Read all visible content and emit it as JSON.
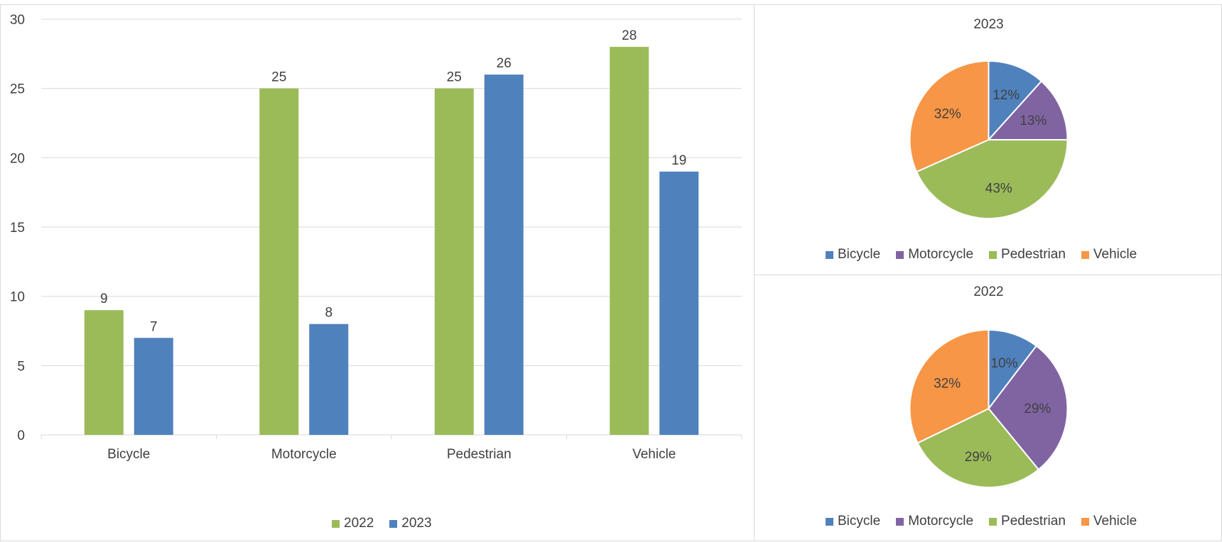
{
  "chart_data": [
    {
      "type": "bar",
      "categories": [
        "Bicycle",
        "Motorcycle",
        "Pedestrian",
        "Vehicle"
      ],
      "series": [
        {
          "name": "2022",
          "values": [
            9,
            25,
            25,
            28
          ],
          "color": "#9bbb59"
        },
        {
          "name": "2023",
          "values": [
            7,
            8,
            26,
            19
          ],
          "color": "#4f81bd"
        }
      ],
      "yticks": [
        "0",
        "5",
        "10",
        "15",
        "20",
        "25",
        "30"
      ],
      "ylim": [
        0,
        30
      ],
      "grid": true,
      "legend": "bottom"
    },
    {
      "type": "pie",
      "title": "2023",
      "labels": [
        "Bicycle",
        "Motorcycle",
        "Pedestrian",
        "Vehicle"
      ],
      "values": [
        7,
        8,
        26,
        19
      ],
      "percent_labels": [
        "12%",
        "13%",
        "43%",
        "32%"
      ],
      "colors": [
        "#4f81bd",
        "#8064a2",
        "#9bbb59",
        "#f79646"
      ],
      "legend": "bottom"
    },
    {
      "type": "pie",
      "title": "2022",
      "labels": [
        "Bicycle",
        "Motorcycle",
        "Pedestrian",
        "Vehicle"
      ],
      "values": [
        9,
        25,
        25,
        28
      ],
      "percent_labels": [
        "10%",
        "29%",
        "29%",
        "32%"
      ],
      "colors": [
        "#4f81bd",
        "#8064a2",
        "#9bbb59",
        "#f79646"
      ],
      "legend": "bottom"
    }
  ]
}
